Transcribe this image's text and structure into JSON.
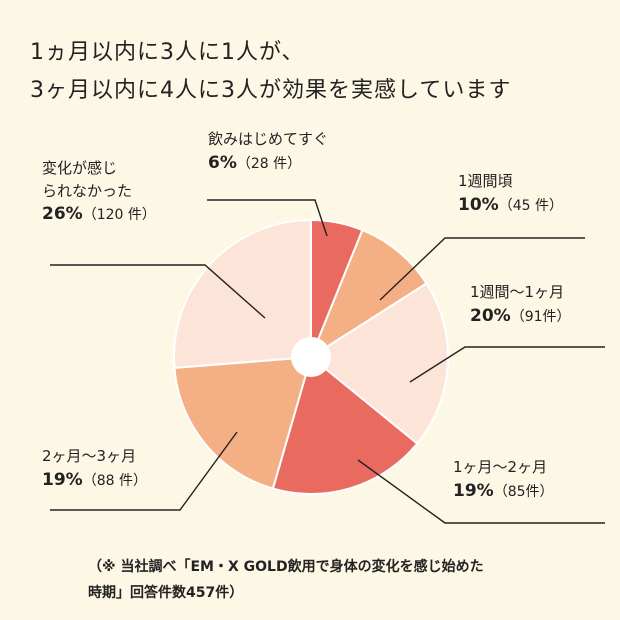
{
  "title_line1": "1ヵ月以内に3人に1人が、",
  "title_line2": "3ヶ月以内に4人に3人が効果を実感しています",
  "chart_data": {
    "type": "pie",
    "title": "1ヵ月以内に3人に1人が、3ヶ月以内に4人に3人が効果を実感しています",
    "slices": [
      {
        "label": "飲みはじめてすぐ",
        "percent": "6%",
        "count": "（28 件）",
        "value": 28,
        "color": "#e96a5f"
      },
      {
        "label": "1週間頃",
        "percent": "10%",
        "count": "（45 件）",
        "value": 45,
        "color": "#f4b084"
      },
      {
        "label": "1週間〜1ヶ月",
        "percent": "20%",
        "count": "（91件）",
        "value": 91,
        "color": "#fce4d8"
      },
      {
        "label": "1ヶ月〜2ヶ月",
        "percent": "19%",
        "count": "（85件）",
        "value": 85,
        "color": "#e96a5f"
      },
      {
        "label": "2ヶ月〜3ヶ月",
        "percent": "19%",
        "count": "（88 件）",
        "value": 88,
        "color": "#f4b084"
      },
      {
        "label": "変化が感じられなかった",
        "label_line1": "変化が感じ",
        "label_line2": "られなかった",
        "percent": "26%",
        "count": "（120 件）",
        "value": 120,
        "color": "#fce4d8"
      }
    ],
    "total": 457
  },
  "footnote_line1": "（※ 当社調べ「EM・X GOLD飲用で身体の変化を感じ始めた",
  "footnote_line2": "時期」回答件数457件）"
}
